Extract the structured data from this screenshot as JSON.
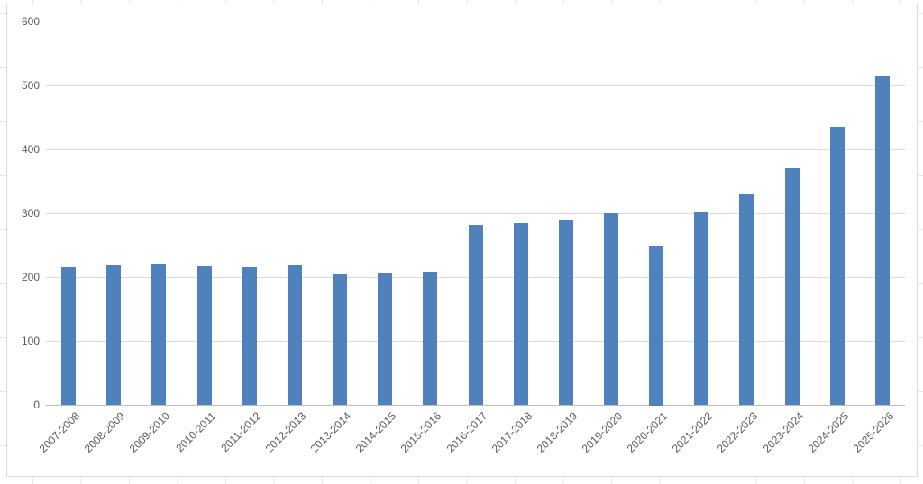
{
  "chart_data": {
    "type": "bar",
    "title": "",
    "xlabel": "",
    "ylabel": "",
    "categories": [
      "2007-2008",
      "2008-2009",
      "2009-2010",
      "2010-2011",
      "2011-2012",
      "2012-2013",
      "2013-2014",
      "2014-2015",
      "2015-2016",
      "2016-2017",
      "2017-2018",
      "2018-2019",
      "2019-2020",
      "2020-2021",
      "2021-2022",
      "2022-2023",
      "2023-2024",
      "2024-2025",
      "2025-2026"
    ],
    "values": [
      216,
      219,
      220,
      217,
      216,
      219,
      204,
      206,
      208,
      282,
      285,
      290,
      300,
      250,
      302,
      330,
      370,
      435,
      515
    ],
    "yticks": [
      0,
      100,
      200,
      300,
      400,
      500,
      600
    ],
    "ylim": [
      0,
      600
    ],
    "grid": true,
    "legend": "none"
  },
  "colors": {
    "bar": "#4f81bd",
    "gridline": "#d9d9d9",
    "axis_line": "#bdbdbd",
    "tick_label": "#595959",
    "chart_border": "#d9d9d9",
    "sheet_line": "#e4e6e9"
  }
}
